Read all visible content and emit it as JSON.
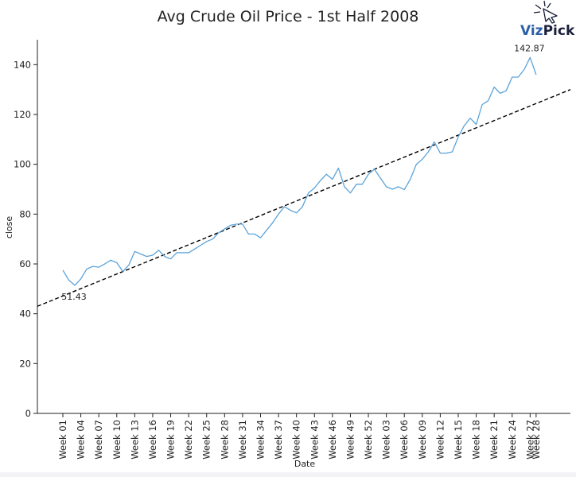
{
  "chart_data": {
    "type": "line",
    "title": "Avg Crude Oil Price - 1st Half 2008",
    "xlabel": "Date",
    "ylabel": "close",
    "ylim": [
      0,
      150
    ],
    "yticks": [
      0,
      20,
      40,
      60,
      80,
      100,
      120,
      140
    ],
    "grid": false,
    "legend": "none",
    "series_color": "#5ba3d9",
    "trend_color": "#000000",
    "xtick_labels": [
      "Week 01",
      "Week 04",
      "Week 07",
      "Week 10",
      "Week 13",
      "Week 16",
      "Week 19",
      "Week 22",
      "Week 25",
      "Week 28",
      "Week 31",
      "Week 34",
      "Week 37",
      "Week 40",
      "Week 43",
      "Week 46",
      "Week 49",
      "Week 52",
      "Week 03",
      "Week 06",
      "Week 09",
      "Week 12",
      "Week 15",
      "Week 18",
      "Week 21",
      "Week 24",
      "Week 27",
      "Week 28"
    ],
    "series": [
      {
        "values": [
          57.5,
          53.5,
          51.4,
          54,
          58,
          59,
          58.7,
          60,
          61.5,
          60.5,
          57,
          59.5,
          65,
          64,
          63,
          63.5,
          65.5,
          63,
          62,
          64.5,
          64.5,
          64.5,
          66,
          67.5,
          69,
          70,
          72.5,
          74,
          75.5,
          76,
          76,
          72,
          72,
          70.5,
          73.5,
          76.5,
          80,
          83,
          81.5,
          80.5,
          83,
          88.5,
          90.5,
          93.5,
          96,
          94,
          98.5,
          91,
          88.5,
          92,
          92,
          96,
          98,
          94.5,
          91,
          90,
          91,
          89.8,
          94,
          100,
          102,
          105,
          109,
          104.5,
          104.5,
          105,
          111,
          115.5,
          118.5,
          116,
          124,
          125.5,
          131,
          128.5,
          129.5,
          135,
          135,
          138,
          142.87,
          136
        ]
      }
    ],
    "trendline": {
      "y_start": 43,
      "y_end": 130
    },
    "annotations": [
      {
        "label": "51.43",
        "x_index": 2,
        "y": 51.43
      },
      {
        "label": "142.87",
        "x_index": 78,
        "y": 142.87
      }
    ]
  },
  "logo": {
    "text_a": "Viz",
    "text_b": "Pick",
    "color_a": "#2b5ea8",
    "color_b": "#1a1f3a"
  }
}
